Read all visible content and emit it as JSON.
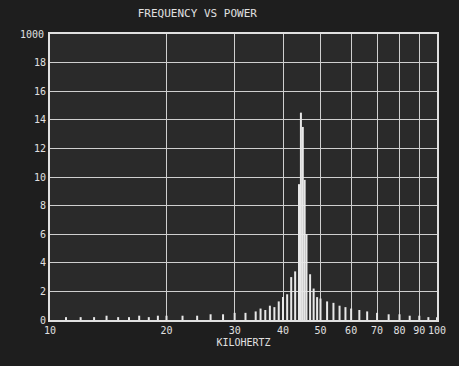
{
  "chart_data": {
    "type": "stem",
    "title": "FREQUENCY VS POWER",
    "x_label": "KILOHERTZ",
    "annotations": [
      {
        "text": "1000"
      }
    ],
    "x": [
      11,
      12,
      13,
      14,
      15,
      16,
      17,
      18,
      19,
      20,
      22,
      24,
      26,
      28,
      30,
      32,
      34,
      35,
      36,
      37,
      38,
      39,
      40,
      41,
      42,
      43,
      44,
      44.5,
      45,
      45.5,
      46,
      47,
      48,
      49,
      50,
      52,
      54,
      56,
      58,
      60,
      63,
      66,
      70,
      75,
      80,
      85,
      90,
      95,
      100
    ],
    "values": [
      0.2,
      0.2,
      0.2,
      0.3,
      0.2,
      0.2,
      0.3,
      0.2,
      0.3,
      0.3,
      0.3,
      0.3,
      0.4,
      0.4,
      0.5,
      0.5,
      0.6,
      0.8,
      0.7,
      1.0,
      0.9,
      1.3,
      1.6,
      1.8,
      3.0,
      3.4,
      9.5,
      14.5,
      13.5,
      9.8,
      6.0,
      3.2,
      2.2,
      1.6,
      1.5,
      1.3,
      1.2,
      1.0,
      0.9,
      0.8,
      0.7,
      0.6,
      0.5,
      0.4,
      0.4,
      0.3,
      0.3,
      0.2,
      0.2
    ],
    "color": "#e8e8e8",
    "log": "x",
    "grid": true,
    "xlim": [
      10,
      100
    ],
    "xticks": [
      10,
      20,
      30,
      40,
      50,
      60,
      70,
      80,
      90,
      100
    ],
    "ylim": [
      0,
      20
    ],
    "yticks": [
      0,
      2,
      4,
      6,
      8,
      10,
      12,
      14,
      16,
      18
    ]
  }
}
